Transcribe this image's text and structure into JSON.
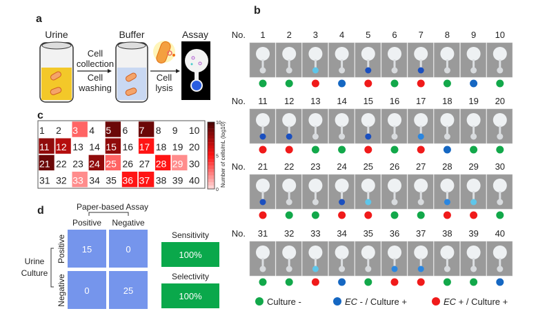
{
  "panel_labels": {
    "a": "a",
    "b": "b",
    "c": "c",
    "d": "d"
  },
  "panel_a": {
    "urine_label": "Urine",
    "buffer_label": "Buffer",
    "assay_label": "Assay",
    "step1_line1": "Cell",
    "step1_line2": "collection",
    "step1_line3": "Cell",
    "step1_line4": "washing",
    "step2_line1": "Cell",
    "step2_line2": "lysis"
  },
  "panel_b": {
    "row_prefix": "No.",
    "legend": [
      {
        "label": "Culture -",
        "color": "#12a84a",
        "italic_part": ""
      },
      {
        "label": " - / Culture +",
        "color": "#1567c2",
        "italic_part": "EC"
      },
      {
        "label": " + / Culture +",
        "color": "#f01a1a",
        "italic_part": "EC"
      }
    ]
  },
  "samples": [
    {
      "no": "1",
      "result": "neg",
      "log_cells": 0
    },
    {
      "no": "2",
      "result": "neg",
      "log_cells": 0
    },
    {
      "no": "3",
      "result": "ec_pos",
      "log_cells": 3
    },
    {
      "no": "4",
      "result": "ec_neg",
      "log_cells": 0
    },
    {
      "no": "5",
      "result": "ec_pos",
      "log_cells": 9
    },
    {
      "no": "6",
      "result": "neg",
      "log_cells": 0
    },
    {
      "no": "7",
      "result": "ec_pos",
      "log_cells": 9
    },
    {
      "no": "8",
      "result": "neg",
      "log_cells": 0
    },
    {
      "no": "9",
      "result": "ec_neg",
      "log_cells": 0
    },
    {
      "no": "10",
      "result": "neg",
      "log_cells": 0
    },
    {
      "no": "11",
      "result": "ec_pos",
      "log_cells": 8
    },
    {
      "no": "12",
      "result": "ec_pos",
      "log_cells": 7
    },
    {
      "no": "13",
      "result": "neg",
      "log_cells": 0
    },
    {
      "no": "14",
      "result": "neg",
      "log_cells": 0
    },
    {
      "no": "15",
      "result": "ec_pos",
      "log_cells": 8
    },
    {
      "no": "16",
      "result": "neg",
      "log_cells": 0
    },
    {
      "no": "17",
      "result": "ec_pos",
      "log_cells": 5
    },
    {
      "no": "18",
      "result": "ec_neg",
      "log_cells": 0
    },
    {
      "no": "19",
      "result": "neg",
      "log_cells": 0
    },
    {
      "no": "20",
      "result": "neg",
      "log_cells": 0
    },
    {
      "no": "21",
      "result": "ec_pos",
      "log_cells": 9
    },
    {
      "no": "22",
      "result": "neg",
      "log_cells": 0
    },
    {
      "no": "23",
      "result": "neg",
      "log_cells": 0
    },
    {
      "no": "24",
      "result": "ec_pos",
      "log_cells": 8
    },
    {
      "no": "25",
      "result": "ec_pos",
      "log_cells": 3
    },
    {
      "no": "26",
      "result": "neg",
      "log_cells": 0
    },
    {
      "no": "27",
      "result": "neg",
      "log_cells": 0
    },
    {
      "no": "28",
      "result": "ec_pos",
      "log_cells": 5
    },
    {
      "no": "29",
      "result": "ec_pos",
      "log_cells": 2
    },
    {
      "no": "30",
      "result": "neg",
      "log_cells": 0
    },
    {
      "no": "31",
      "result": "neg",
      "log_cells": 0
    },
    {
      "no": "32",
      "result": "neg",
      "log_cells": 0
    },
    {
      "no": "33",
      "result": "ec_pos",
      "log_cells": 2
    },
    {
      "no": "34",
      "result": "ec_neg",
      "log_cells": 0
    },
    {
      "no": "35",
      "result": "neg",
      "log_cells": 0
    },
    {
      "no": "36",
      "result": "ec_pos",
      "log_cells": 5
    },
    {
      "no": "37",
      "result": "ec_pos",
      "log_cells": 5
    },
    {
      "no": "38",
      "result": "neg",
      "log_cells": 0
    },
    {
      "no": "39",
      "result": "neg",
      "log_cells": 0
    },
    {
      "no": "40",
      "result": "ec_neg",
      "log_cells": 0
    }
  ],
  "result_colors": {
    "neg": "#12a84a",
    "ec_neg": "#1567c2",
    "ec_pos": "#f01a1a"
  },
  "panel_c": {
    "colorbar_label": "Number of cells/mL (log10)",
    "colorbar_ticks": [
      "0",
      "5",
      "10"
    ],
    "colorbar_range": [
      0,
      10
    ]
  },
  "panel_d": {
    "assay_title": "Paper-based Assay",
    "col_headers": [
      "Positive",
      "Negative"
    ],
    "row_headers": [
      "Positive",
      "Negative"
    ],
    "row_group_line1": "Urine",
    "row_group_line2": "Culture",
    "matrix": [
      [
        "15",
        "0"
      ],
      [
        "0",
        "25"
      ]
    ],
    "sensitivity_label": "Sensitivity",
    "sensitivity_value": "100%",
    "selectivity_label": "Selectivity",
    "selectivity_value": "100%",
    "matrix_color": "#7595ec",
    "metric_color": "#0aa84b"
  }
}
